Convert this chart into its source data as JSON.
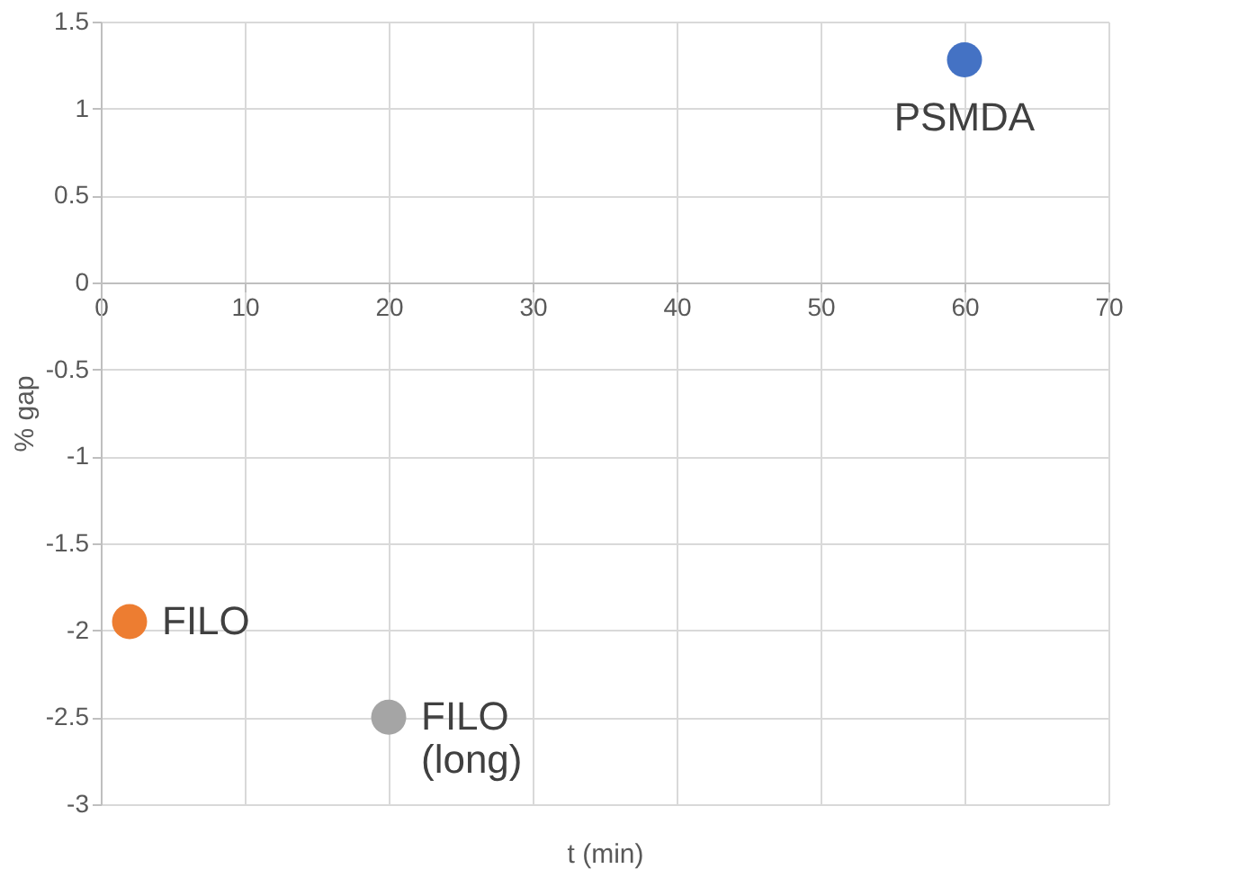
{
  "chart_data": {
    "type": "scatter",
    "xlabel": "t (min)",
    "ylabel": "% gap",
    "xlim": [
      0,
      70
    ],
    "xticks": [
      0,
      10,
      20,
      30,
      40,
      50,
      60,
      70
    ],
    "ylim": [
      -3,
      1.5
    ],
    "yticks": [
      -3,
      -2.5,
      -2,
      -1.5,
      -1,
      -0.5,
      0,
      0.5,
      1,
      1.5
    ],
    "grid": true,
    "legend": false,
    "marker": "circle",
    "series": [
      {
        "name": "PSMDA",
        "color": "#4472c4",
        "x": [
          60
        ],
        "values": [
          1.28
        ]
      },
      {
        "name": "FILO",
        "color": "#ed7d31",
        "x": [
          2
        ],
        "values": [
          -1.95
        ]
      },
      {
        "name": "FILO (long)",
        "color": "#a5a5a5",
        "x": [
          20
        ],
        "values": [
          -2.5
        ]
      }
    ]
  }
}
